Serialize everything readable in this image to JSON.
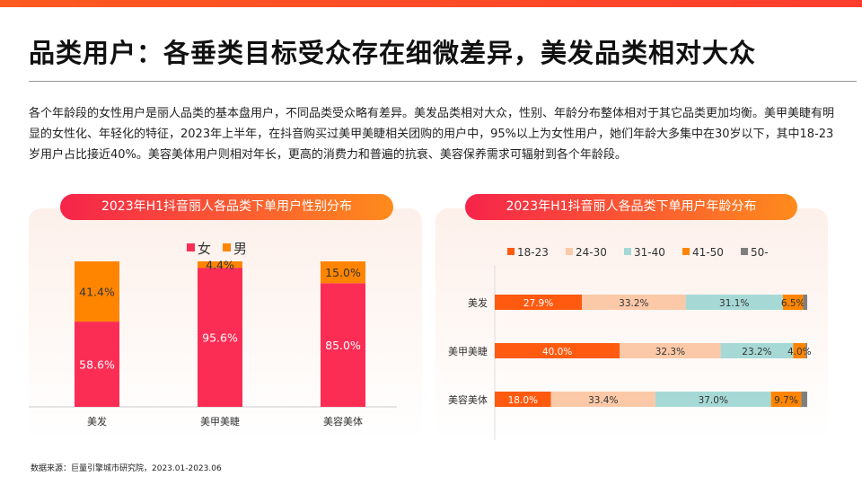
{
  "header": {
    "title": "品类用户：各垂类目标受众存在细微差异，美发品类相对大众"
  },
  "intro": "各个年龄段的女性用户是丽人品类的基本盘用户，不同品类受众略有差异。美发品类相对大众，性别、年龄分布整体相对于其它品类更加均衡。美甲美睫有明显的女性化、年轻化的特征，2023年上半年，在抖音购买过美甲美睫相关团购的用户中，95%以上为女性用户，她们年龄大多集中在30岁以下，其中18-23岁用户占比接近40%。美容美体用户则相对年长，更高的消费力和普遍的抗衰、美容保养需求可辐射到各个年龄段。",
  "source": "数据来源：巨量引擎城市研究院，2023.01-2023.06",
  "chart_data": [
    {
      "type": "bar",
      "stacked": true,
      "orientation": "vertical",
      "title": "2023年H1抖音丽人各品类下单用户性别分布",
      "categories": [
        "美发",
        "美甲美睫",
        "美容美体"
      ],
      "series": [
        {
          "name": "女",
          "values": [
            58.6,
            95.6,
            85.0
          ],
          "labels": [
            "58.6%",
            "95.6%",
            "85.0%"
          ],
          "color": "#fc2d55"
        },
        {
          "name": "男",
          "values": [
            41.4,
            4.4,
            15.0
          ],
          "labels": [
            "41.4%",
            "4.4%",
            "15.0%"
          ],
          "color": "#ff8500"
        }
      ],
      "ylim": [
        0,
        100
      ],
      "legend": "top",
      "grid": false
    },
    {
      "type": "bar",
      "stacked": true,
      "orientation": "horizontal",
      "title": "2023年H1抖音丽人各品类下单用户年龄分布",
      "categories": [
        "美发",
        "美甲美睫",
        "美容美体"
      ],
      "series": [
        {
          "name": "18-23",
          "values": [
            27.9,
            40.0,
            18.0
          ],
          "labels": [
            "27.9%",
            "40.0%",
            "18.0%"
          ],
          "color": "#ff5a10"
        },
        {
          "name": "24-30",
          "values": [
            33.2,
            32.3,
            33.4
          ],
          "labels": [
            "33.2%",
            "32.3%",
            "33.4%"
          ],
          "color": "#fbc9a8"
        },
        {
          "name": "31-40",
          "values": [
            31.1,
            23.2,
            37.0
          ],
          "labels": [
            "31.1%",
            "23.2%",
            "37.0%"
          ],
          "color": "#a6d9d6"
        },
        {
          "name": "41-50",
          "values": [
            6.5,
            4.0,
            9.7
          ],
          "labels": [
            "6.5%",
            "4.0%",
            "9.7%"
          ],
          "color": "#ff8500"
        },
        {
          "name": "50-",
          "values": [
            1.3,
            0.5,
            1.9
          ],
          "labels": [
            "",
            "",
            ""
          ],
          "color": "#7f7f7f"
        }
      ],
      "xlim": [
        0,
        100
      ],
      "legend": "top",
      "grid": false
    }
  ]
}
